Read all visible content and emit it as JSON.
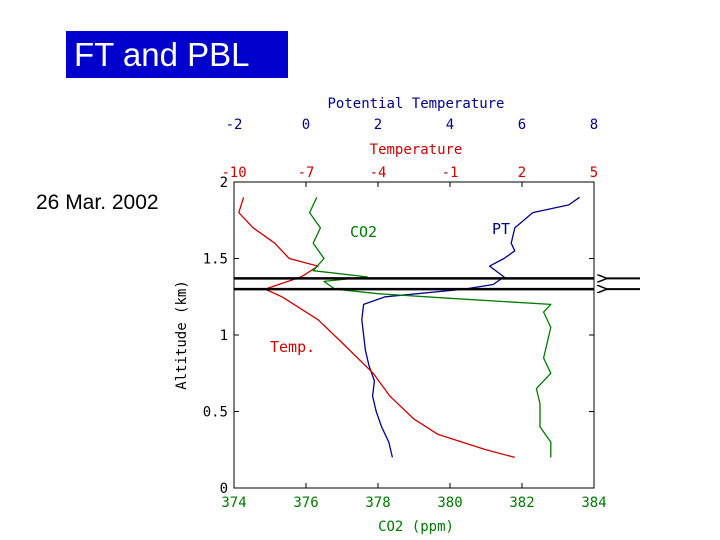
{
  "slide": {
    "title": "FT and PBL",
    "date": "26 Mar. 2002"
  },
  "colors": {
    "title_bg": "#0000cc",
    "pt": "#00008b",
    "temperature": "#cc0000",
    "co2": "#007a00",
    "axis": "#000000"
  },
  "chart_data": {
    "type": "line",
    "axes": {
      "potential_temperature": {
        "label": "Potential Temperature",
        "range": [
          -2,
          8
        ],
        "ticks": [
          "-2",
          "0",
          "2",
          "4",
          "6",
          "8"
        ],
        "color": "#00008b"
      },
      "temperature": {
        "label": "Temperature",
        "range": [
          -10,
          5
        ],
        "ticks": [
          "-10",
          "-7",
          "-4",
          "-1",
          "2",
          "5"
        ],
        "color": "#cc0000"
      },
      "co2": {
        "label": "CO2 (ppm)",
        "range": [
          374,
          384
        ],
        "ticks": [
          "374",
          "376",
          "378",
          "380",
          "382",
          "384"
        ],
        "color": "#007a00"
      },
      "altitude": {
        "label": "Altitude (km)",
        "range": [
          0,
          2
        ],
        "ticks": [
          "0",
          "0.5",
          "1",
          "1.5",
          "2"
        ]
      }
    },
    "series": [
      {
        "name": "PT",
        "axis": "potential_temperature",
        "color": "#00008b",
        "points": [
          [
            2.4,
            0.2
          ],
          [
            2.3,
            0.3
          ],
          [
            2.1,
            0.4
          ],
          [
            1.95,
            0.5
          ],
          [
            1.85,
            0.6
          ],
          [
            1.9,
            0.7
          ],
          [
            1.75,
            0.8
          ],
          [
            1.65,
            0.9
          ],
          [
            1.6,
            1.0
          ],
          [
            1.55,
            1.1
          ],
          [
            1.6,
            1.2
          ],
          [
            2.2,
            1.25
          ],
          [
            4.4,
            1.3
          ],
          [
            5.2,
            1.33
          ],
          [
            5.5,
            1.38
          ],
          [
            5.1,
            1.45
          ],
          [
            5.5,
            1.5
          ],
          [
            5.8,
            1.55
          ],
          [
            5.7,
            1.6
          ],
          [
            5.8,
            1.7
          ],
          [
            6.3,
            1.8
          ],
          [
            7.3,
            1.85
          ],
          [
            7.6,
            1.9
          ]
        ]
      },
      {
        "name": "Temp.",
        "axis": "temperature",
        "color": "#cc0000",
        "points": [
          [
            1.7,
            0.2
          ],
          [
            0.5,
            0.25
          ],
          [
            -1.5,
            0.35
          ],
          [
            -2.5,
            0.45
          ],
          [
            -3.5,
            0.6
          ],
          [
            -4.2,
            0.75
          ],
          [
            -5.5,
            0.95
          ],
          [
            -6.5,
            1.1
          ],
          [
            -7.5,
            1.2
          ],
          [
            -8.0,
            1.25
          ],
          [
            -8.7,
            1.3
          ],
          [
            -7.2,
            1.38
          ],
          [
            -6.5,
            1.45
          ],
          [
            -7.7,
            1.5
          ],
          [
            -8.3,
            1.6
          ],
          [
            -9.2,
            1.7
          ],
          [
            -9.8,
            1.8
          ],
          [
            -9.6,
            1.9
          ]
        ]
      },
      {
        "name": "CO2",
        "axis": "co2",
        "color": "#007a00",
        "points": [
          [
            382.8,
            0.2
          ],
          [
            382.8,
            0.3
          ],
          [
            382.5,
            0.4
          ],
          [
            382.5,
            0.55
          ],
          [
            382.4,
            0.65
          ],
          [
            382.8,
            0.75
          ],
          [
            382.6,
            0.85
          ],
          [
            382.7,
            0.95
          ],
          [
            382.8,
            1.05
          ],
          [
            382.6,
            1.15
          ],
          [
            382.8,
            1.2
          ],
          [
            380,
            1.24
          ],
          [
            378,
            1.27
          ],
          [
            376.8,
            1.3
          ],
          [
            376.5,
            1.35
          ],
          [
            377.7,
            1.38
          ],
          [
            376.2,
            1.42
          ],
          [
            376.5,
            1.5
          ],
          [
            376.2,
            1.6
          ],
          [
            376.4,
            1.7
          ],
          [
            376.1,
            1.8
          ],
          [
            376.3,
            1.9
          ]
        ]
      }
    ],
    "boundary_lines_altitude_km": [
      1.37,
      1.3
    ],
    "annotations": [
      "CO2",
      "PT",
      "Temp."
    ]
  }
}
